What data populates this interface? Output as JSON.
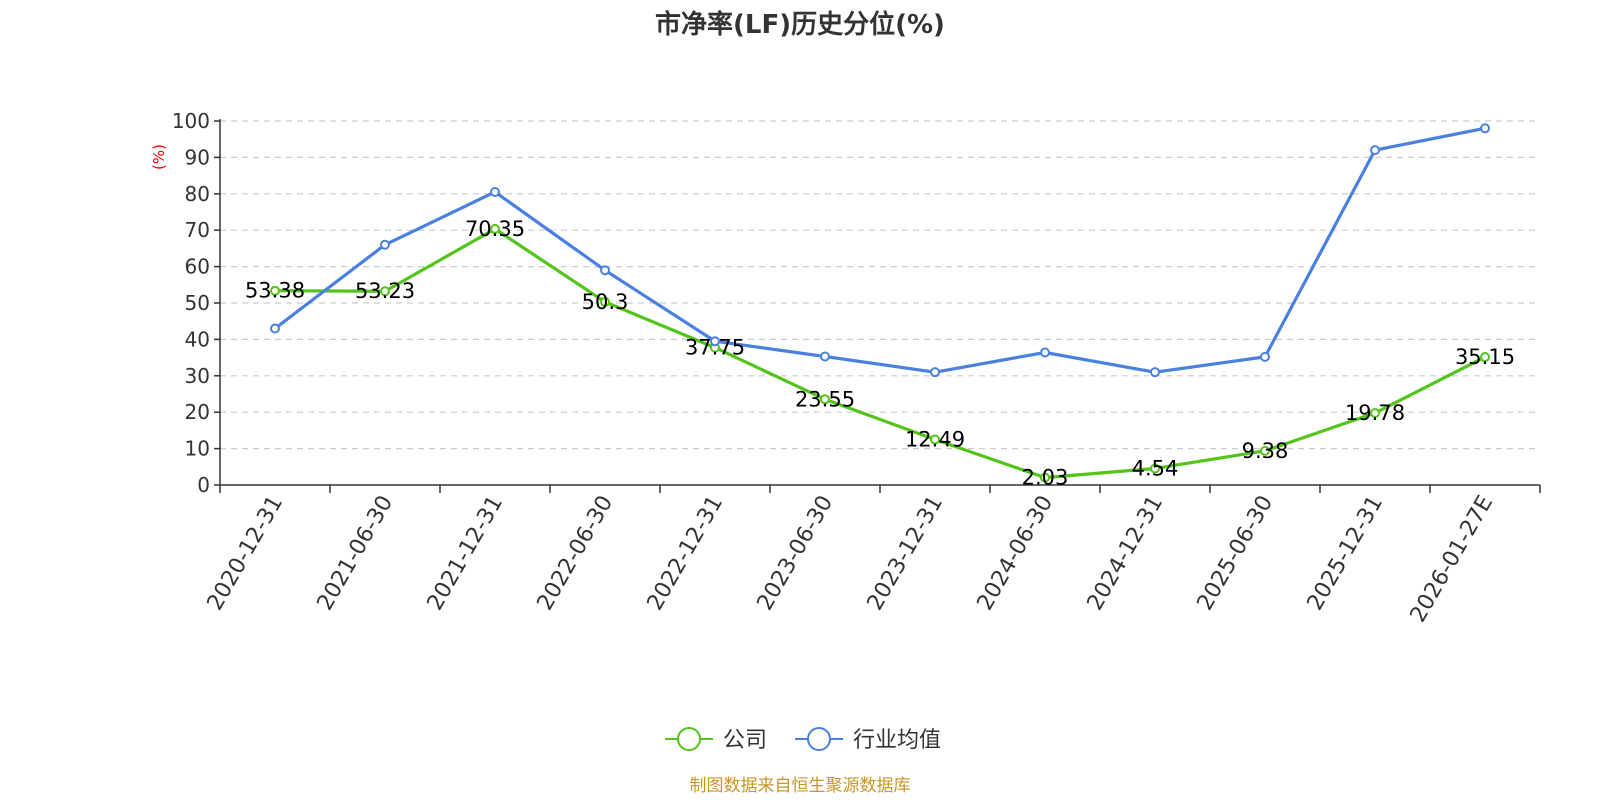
{
  "chart_data": {
    "type": "line",
    "title": "市净率(LF)历史分位(%)",
    "ylabel": "(%)",
    "ylim": [
      0,
      100
    ],
    "yticks": [
      0,
      10,
      20,
      30,
      40,
      50,
      60,
      70,
      80,
      90,
      100
    ],
    "grid": true,
    "legend_position": "bottom",
    "categories": [
      "2020-12-31",
      "2021-06-30",
      "2021-12-31",
      "2022-06-30",
      "2022-12-31",
      "2023-06-30",
      "2023-12-31",
      "2024-06-30",
      "2024-12-31",
      "2025-06-30",
      "2025-12-31",
      "2026-01-27E"
    ],
    "series": [
      {
        "name": "公司",
        "color": "#52c41a",
        "values": [
          53.38,
          53.23,
          70.35,
          50.3,
          37.75,
          23.55,
          12.49,
          2.03,
          4.54,
          9.38,
          19.78,
          35.15
        ],
        "labels": [
          "53.38",
          "53.23",
          "70.35",
          "50.3",
          "37.75",
          "23.55",
          "12.49",
          "2.03",
          "4.54",
          "9.38",
          "19.78",
          "35.15"
        ]
      },
      {
        "name": "行业均值",
        "color": "#4a80de",
        "values": [
          43,
          66,
          80.5,
          59,
          39.5,
          35.3,
          31,
          36.4,
          31,
          35.2,
          92,
          98
        ]
      }
    ],
    "source": "制图数据来自恒生聚源数据库"
  }
}
